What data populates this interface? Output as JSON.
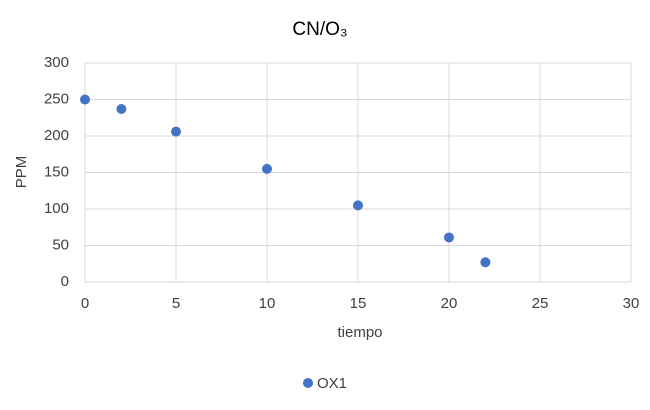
{
  "chart_data": {
    "type": "scatter",
    "title": "CN/O₃",
    "x_label": "tiempo",
    "y_label": "PPM",
    "series": [
      {
        "name": "OX1",
        "color": "#4472c4",
        "x": [
          0,
          2,
          5,
          10,
          15,
          20,
          22
        ],
        "values": [
          250,
          237,
          206,
          155,
          105,
          61,
          27
        ]
      }
    ],
    "xlim": [
      0,
      30
    ],
    "xticks": [
      0,
      5,
      10,
      15,
      20,
      25,
      30
    ],
    "ylim": [
      0,
      300
    ],
    "yticks": [
      0,
      50,
      100,
      150,
      200,
      250,
      300
    ],
    "grid": true,
    "legend": "bottom"
  }
}
